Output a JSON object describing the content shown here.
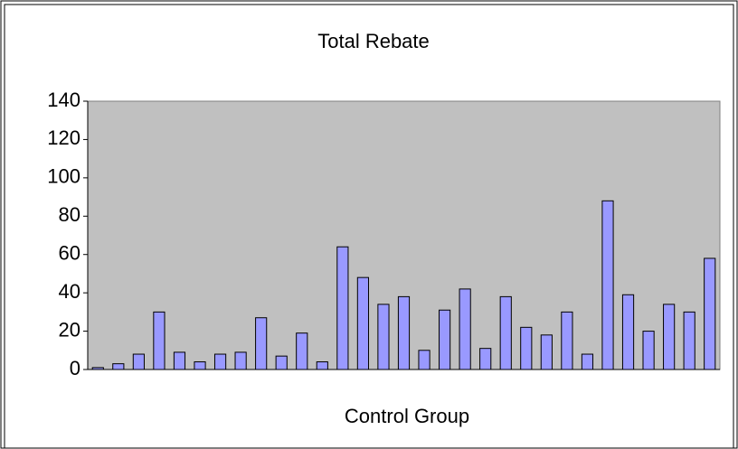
{
  "chart_data": {
    "type": "bar",
    "title": "Total Rebate",
    "x_label": "Control Group",
    "categories": [
      null,
      null,
      null,
      null,
      null,
      null,
      null,
      null,
      null,
      null,
      null,
      null,
      null,
      null,
      null,
      null,
      null,
      null,
      null,
      null,
      null,
      null,
      null,
      null,
      null,
      null,
      null,
      null,
      null,
      null,
      null
    ],
    "values": [
      1,
      3,
      8,
      30,
      9,
      4,
      8,
      9,
      27,
      7,
      19,
      4,
      64,
      48,
      34,
      38,
      10,
      31,
      42,
      11,
      38,
      22,
      18,
      30,
      8,
      88,
      39,
      20,
      34,
      30,
      58
    ],
    "color": "#9999ff",
    "ylim": [
      0,
      140
    ],
    "yticks": [
      0,
      20,
      40,
      60,
      80,
      100,
      120,
      140
    ],
    "grid": false
  }
}
